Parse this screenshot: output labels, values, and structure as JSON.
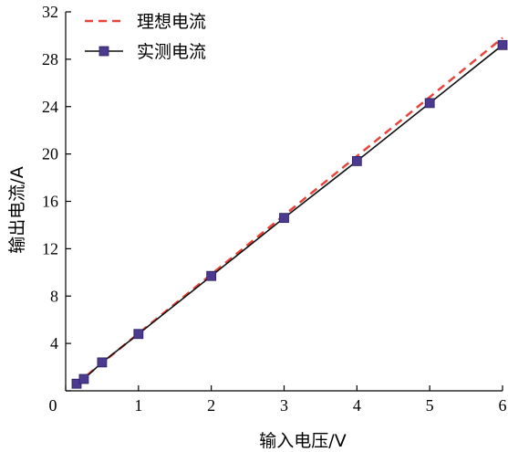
{
  "chart_data": {
    "type": "line",
    "xlabel": "输入电压/V",
    "ylabel": "输出电流/A",
    "xlim": [
      0,
      6
    ],
    "ylim": [
      0,
      32
    ],
    "xticks": [
      0,
      1,
      2,
      3,
      4,
      5,
      6
    ],
    "yticks": [
      0,
      4,
      8,
      12,
      16,
      20,
      24,
      28,
      32
    ],
    "grid": false,
    "legend_position": "top-left",
    "series": [
      {
        "name": "理想电流",
        "style": "dashed",
        "color": "#e8443a",
        "x": [
          0.15,
          6
        ],
        "y": [
          0.6,
          29.8
        ]
      },
      {
        "name": "实测电流",
        "style": "solid-square-markers",
        "color": "#111111",
        "marker_color": "#4b3a8f",
        "x": [
          0.15,
          0.25,
          0.5,
          1,
          2,
          3,
          4,
          5,
          6
        ],
        "y": [
          0.6,
          1.0,
          2.4,
          4.8,
          9.7,
          14.6,
          19.4,
          24.3,
          29.2
        ]
      }
    ]
  }
}
